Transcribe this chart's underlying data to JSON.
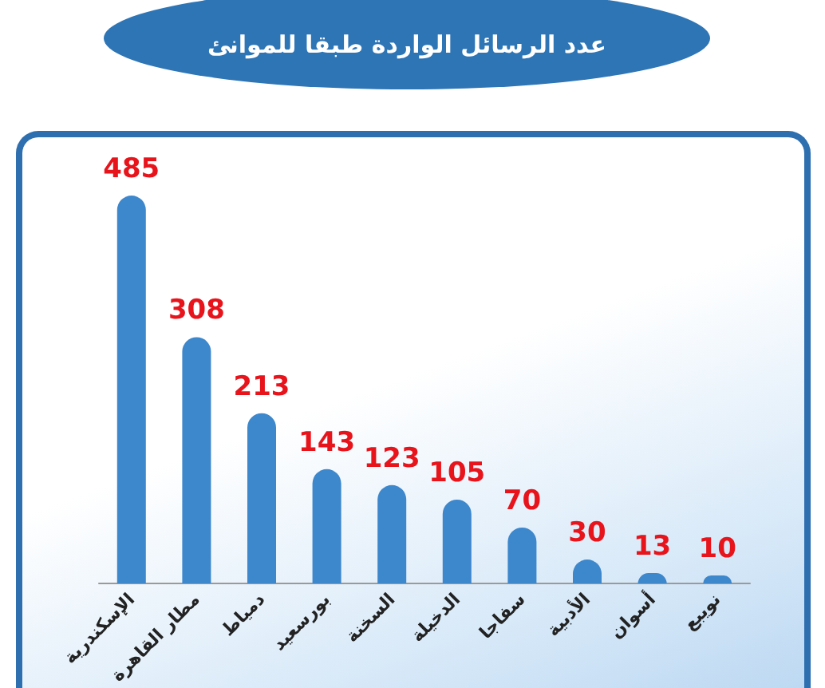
{
  "chart_data": {
    "type": "bar",
    "title": "عدد الرسائل الواردة طبقا للموانئ",
    "categories": [
      "الإسكندرية",
      "مطار القاهرة",
      "دمياط",
      "بورسعيد",
      "السخنة",
      "الدخيلة",
      "سفاجا",
      "الأدبية",
      "أسوان",
      "نويبع"
    ],
    "values": [
      485,
      308,
      213,
      143,
      123,
      105,
      70,
      30,
      13,
      10
    ],
    "color": "#3d87cc",
    "data_labels": true
  }
}
